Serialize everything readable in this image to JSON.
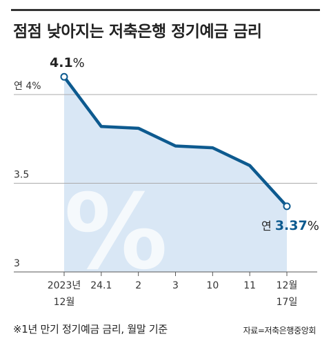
{
  "title": "점점 낮아지는 저축은행 정기예금 금리",
  "footnote": "※1년 만기 정기예금 금리, 월말 기준",
  "source": "자료=저축은행중앙회",
  "colors": {
    "line": "#0d5a8f",
    "area": "#d9e7f5",
    "grid": "#aaaaaa",
    "accent": "#0d5a8f",
    "watermark": "#ffffff"
  },
  "watermark": "%",
  "chart_data": {
    "type": "area",
    "title": "점점 낮아지는 저축은행 정기예금 금리",
    "xlabel": "",
    "ylabel": "",
    "ylim": [
      3.0,
      4.0
    ],
    "grid": true,
    "y_ticks": [
      {
        "value": 4.0,
        "label": "연 4%"
      },
      {
        "value": 3.5,
        "label": "3.5"
      },
      {
        "value": 3.0,
        "label": "3"
      }
    ],
    "categories": [
      [
        "2023년",
        "12월"
      ],
      [
        "24.1"
      ],
      [
        "2"
      ],
      [
        "3"
      ],
      [
        "10"
      ],
      [
        "11"
      ],
      [
        "12월",
        "17일"
      ]
    ],
    "values": [
      4.1,
      3.82,
      3.81,
      3.71,
      3.7,
      3.6,
      3.37
    ],
    "annotations": {
      "first": {
        "text": "4.1",
        "unit": "%"
      },
      "last": {
        "prefix": "연 ",
        "text": "3.37",
        "unit": "%"
      }
    }
  }
}
